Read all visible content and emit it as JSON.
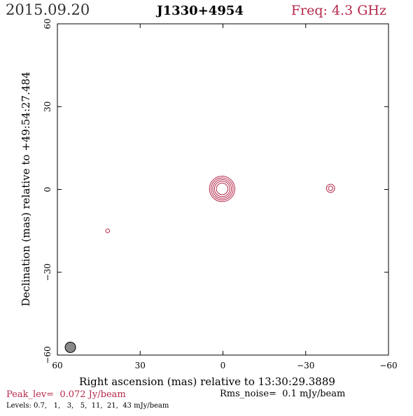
{
  "header": {
    "date": "2015.09.20",
    "source": "J1330+4954",
    "freq": "Freq: 4.3 GHz"
  },
  "colors": {
    "accent": "#b5284a",
    "axis": "#000000",
    "beam_fill": "#888888"
  },
  "chart_data": {
    "type": "contour",
    "xlabel": "Right ascension (mas) relative to 13:30:29.3889",
    "ylabel": "Declination (mas) relative to +49:54:27.484",
    "xlim": [
      60,
      -60
    ],
    "ylim": [
      -60,
      60
    ],
    "x_ticks": [
      60,
      30,
      0,
      -30,
      -60
    ],
    "x_tick_labels": [
      "60",
      "30",
      "0",
      "−30",
      "−60"
    ],
    "y_ticks": [
      60,
      30,
      0,
      -30,
      -60
    ],
    "y_tick_labels": [
      "60",
      "30",
      "0",
      "−30",
      "−60"
    ],
    "peak_label": "Peak_lev=  0.072 Jy/beam",
    "rms_label": "Rms_noise=  0.1 mJy/beam",
    "levels_label": "Levels: 0.7,   1,   3,   5,  11,  21,  43 mJy/beam",
    "levels_mjy": [
      0.7,
      1,
      3,
      5,
      11,
      21,
      43
    ],
    "components": [
      {
        "name": "core",
        "x": 0.3,
        "y": 0.2,
        "contours": [
          {
            "rx": 2.8,
            "ry": 4.6,
            "angle": -8
          },
          {
            "rx": 2.4,
            "ry": 4.0,
            "angle": -8
          },
          {
            "rx": 2.0,
            "ry": 3.4,
            "angle": -8
          },
          {
            "rx": 1.6,
            "ry": 2.8,
            "angle": -8
          },
          {
            "rx": 1.2,
            "ry": 2.1,
            "angle": -8
          }
        ]
      },
      {
        "name": "east-feature",
        "x": -39,
        "y": 0.4,
        "contours": [
          {
            "rx": 1.8,
            "ry": 1.5,
            "angle": 30
          },
          {
            "rx": 0.9,
            "ry": 0.8,
            "angle": 30
          }
        ]
      },
      {
        "name": "noise-blob",
        "x": 41.8,
        "y": -15,
        "contours": [
          {
            "rx": 0.25,
            "ry": 0.7,
            "angle": 0
          }
        ]
      }
    ],
    "beam": {
      "x": 55.3,
      "y": -57.2,
      "major": 3.8,
      "minor": 1.7,
      "pa": -15
    }
  }
}
